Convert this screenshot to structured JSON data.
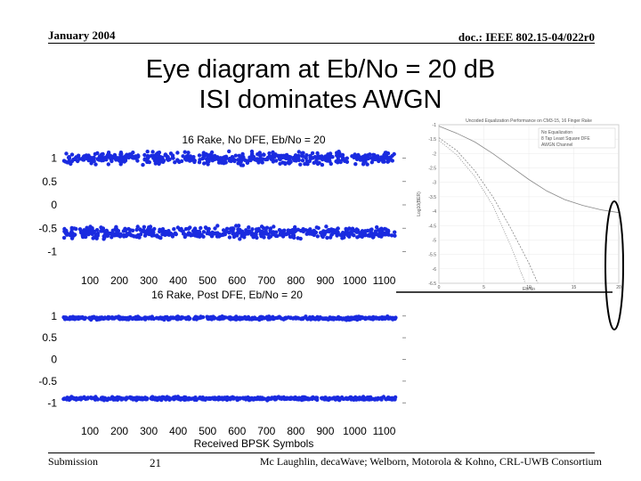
{
  "header": {
    "date": "January 2004",
    "doc_id": "doc.: IEEE 802.15-04/022r0"
  },
  "title": {
    "line1": "Eye diagram at Eb/No = 20 dB",
    "line2": "ISI dominates AWGN"
  },
  "footer": {
    "left": "Submission",
    "page": "21",
    "right": "Mc Laughlin, decaWave; Welborn, Motorola & Kohno, CRL-UWB Consortium"
  },
  "colors": {
    "dots": "#1a2be0",
    "inset_line": "#888888",
    "annotation": "#000000"
  },
  "chart_data": [
    {
      "type": "scatter",
      "title": "16 Rake, No DFE, Eb/No = 20",
      "xlim": [
        0,
        1150
      ],
      "ylim": [
        -1.2,
        1.2
      ],
      "x_ticks": [
        "100",
        "200",
        "300",
        "400",
        "500",
        "600",
        "700",
        "800",
        "900",
        "1000",
        "1100"
      ],
      "y_ticks": [
        "1",
        "0.5",
        "0",
        "-0.5",
        "-1"
      ],
      "rails": [
        {
          "level": 1.0,
          "spread": 0.18
        },
        {
          "level": -0.6,
          "spread": 0.18
        }
      ],
      "grid": false
    },
    {
      "type": "scatter",
      "title": "16 Rake, Post DFE, Eb/No = 20",
      "xlabel": "Received BPSK Symbols",
      "xlim": [
        0,
        1150
      ],
      "ylim": [
        -1.2,
        1.2
      ],
      "x_ticks": [
        "100",
        "200",
        "300",
        "400",
        "500",
        "600",
        "700",
        "800",
        "900",
        "1000",
        "1100"
      ],
      "y_ticks": [
        "1",
        "0.5",
        "0",
        "-0.5",
        "-1"
      ],
      "rails": [
        {
          "level": 0.95,
          "spread": 0.05
        },
        {
          "level": -0.9,
          "spread": 0.05
        }
      ],
      "grid": false
    },
    {
      "type": "line",
      "title": "Uncoded Equalization Performance on CM3-15, 16 Finger Rake",
      "xlabel": "Eb/No",
      "ylabel": "Log10(BER)",
      "xlim": [
        0,
        20
      ],
      "ylim": [
        -6.5,
        -1
      ],
      "x_ticks": [
        "0",
        "5",
        "10",
        "15",
        "20"
      ],
      "y_ticks": [
        "-1",
        "-1.5",
        "-2",
        "-2.5",
        "-3",
        "-3.5",
        "-4",
        "-4.5",
        "-5",
        "-5.5",
        "-6",
        "-6.5"
      ],
      "legend": [
        "No Equalization",
        "8 Tap Least Square DFE",
        "AWGN Channel"
      ],
      "legend_position": "top-right",
      "series": [
        {
          "name": "No Equalization",
          "x": [
            0,
            2,
            4,
            6,
            8,
            10,
            12,
            14,
            16,
            18,
            20
          ],
          "y": [
            -1.05,
            -1.3,
            -1.6,
            -2.0,
            -2.45,
            -2.9,
            -3.3,
            -3.6,
            -3.8,
            -3.95,
            -4.05
          ]
        },
        {
          "name": "8 Tap Least Square DFE",
          "x": [
            0,
            2,
            4,
            6,
            8,
            10,
            11
          ],
          "y": [
            -1.45,
            -1.9,
            -2.6,
            -3.5,
            -4.6,
            -5.8,
            -6.5
          ]
        },
        {
          "name": "AWGN Channel",
          "x": [
            0,
            2,
            4,
            6,
            8,
            9.6
          ],
          "y": [
            -1.55,
            -2.05,
            -2.8,
            -3.8,
            -5.2,
            -6.5
          ]
        }
      ]
    }
  ]
}
